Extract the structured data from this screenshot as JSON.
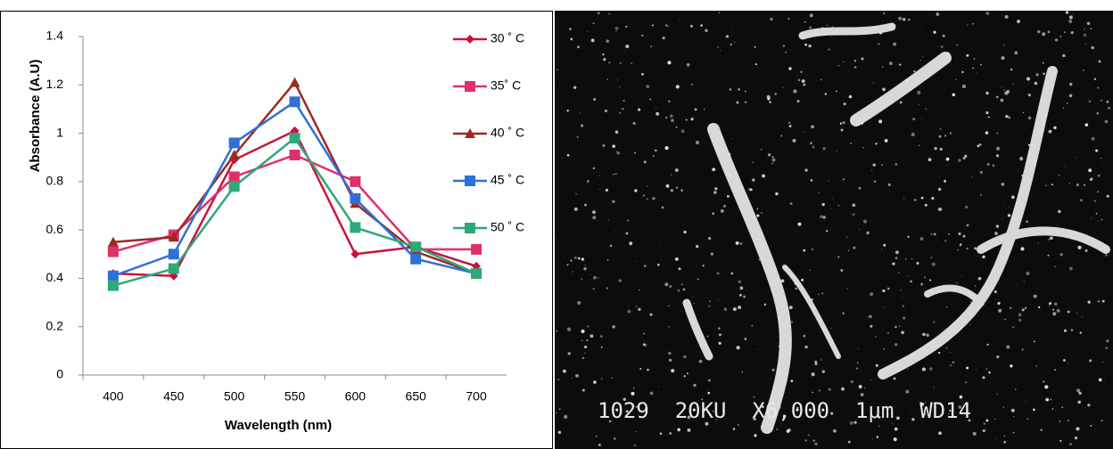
{
  "chart_data": {
    "type": "line",
    "xlabel": "Wavelength (nm)",
    "ylabel": "Absorbance (A.U)",
    "categories": [
      "400",
      "450",
      "500",
      "550",
      "600",
      "650",
      "700"
    ],
    "ylim": [
      0,
      1.4
    ],
    "yticks": [
      0,
      0.2,
      0.4,
      0.6,
      0.8,
      1,
      1.2,
      1.4
    ],
    "legend": "right",
    "series": [
      {
        "name": "30 ˚ C",
        "color": "#c8143c",
        "marker": "diamond",
        "values": [
          0.42,
          0.41,
          0.89,
          1.01,
          0.5,
          0.53,
          0.45
        ]
      },
      {
        "name": "35˚ C",
        "color": "#e0306a",
        "marker": "square",
        "values": [
          0.51,
          0.58,
          0.82,
          0.91,
          0.8,
          0.52,
          0.52
        ]
      },
      {
        "name": "40 ˚ C",
        "color": "#9c2a22",
        "marker": "triangle",
        "values": [
          0.55,
          0.57,
          0.91,
          1.21,
          0.71,
          0.51,
          0.42
        ]
      },
      {
        "name": "45 ˚ C",
        "color": "#2f6fd8",
        "marker": "square",
        "values": [
          0.41,
          0.5,
          0.96,
          1.13,
          0.73,
          0.48,
          0.42
        ]
      },
      {
        "name": "50 ˚ C",
        "color": "#2ea878",
        "marker": "square",
        "values": [
          0.37,
          0.44,
          0.78,
          0.98,
          0.61,
          0.53,
          0.42
        ]
      }
    ]
  },
  "micrograph": {
    "caption": "1029  20KU  X6,000  1μm  WD14"
  }
}
